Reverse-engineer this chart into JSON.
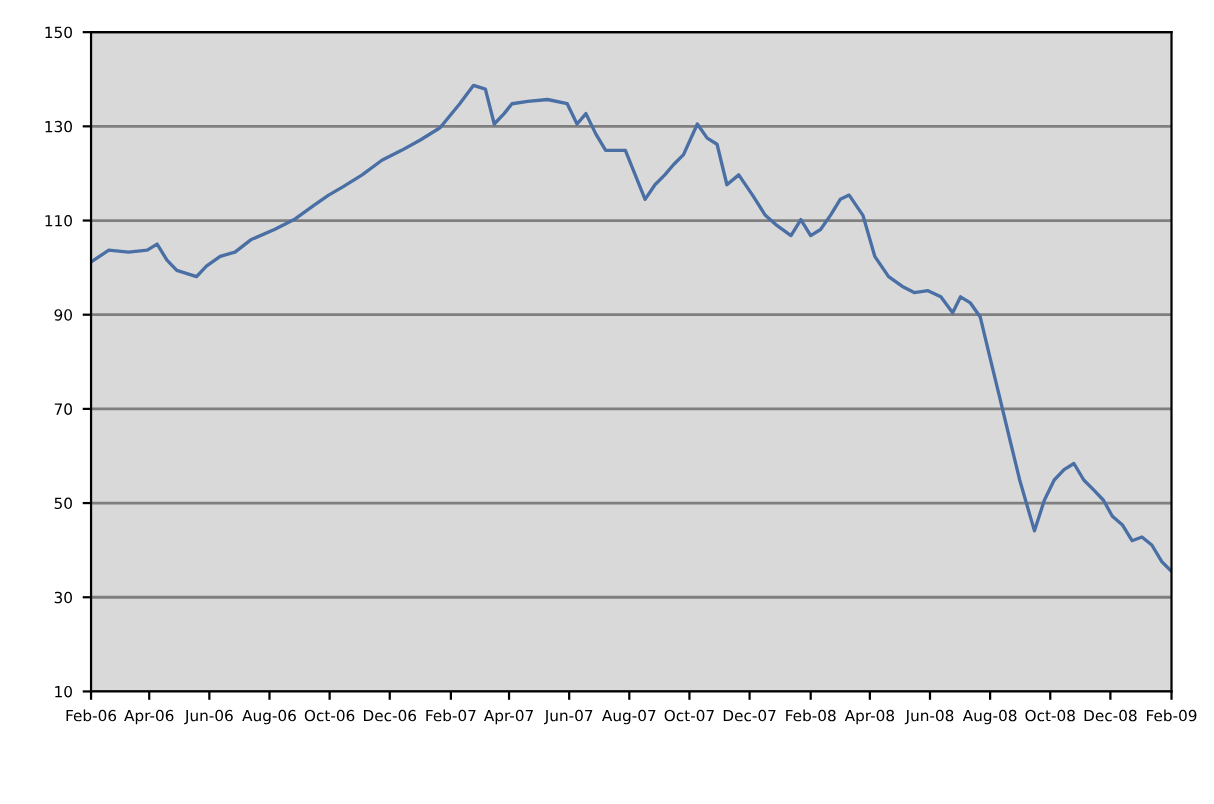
{
  "chart_data": {
    "type": "line",
    "grid": "y",
    "xlim": [
      "2006-02-01",
      "2009-02-01"
    ],
    "ylim": [
      10,
      150
    ],
    "yticks": [
      10,
      30,
      50,
      70,
      90,
      110,
      130,
      150
    ],
    "xticks": [
      {
        "value": "2006-02-01",
        "label": "Feb-06"
      },
      {
        "value": "2006-04-01",
        "label": "Apr-06"
      },
      {
        "value": "2006-06-01",
        "label": "Jun-06"
      },
      {
        "value": "2006-08-01",
        "label": "Aug-06"
      },
      {
        "value": "2006-10-01",
        "label": "Oct-06"
      },
      {
        "value": "2006-12-01",
        "label": "Dec-06"
      },
      {
        "value": "2007-02-01",
        "label": "Feb-07"
      },
      {
        "value": "2007-04-01",
        "label": "Apr-07"
      },
      {
        "value": "2007-06-01",
        "label": "Jun-07"
      },
      {
        "value": "2007-08-01",
        "label": "Aug-07"
      },
      {
        "value": "2007-10-01",
        "label": "Oct-07"
      },
      {
        "value": "2007-12-01",
        "label": "Dec-07"
      },
      {
        "value": "2008-02-01",
        "label": "Feb-08"
      },
      {
        "value": "2008-04-01",
        "label": "Apr-08"
      },
      {
        "value": "2008-06-01",
        "label": "Jun-08"
      },
      {
        "value": "2008-08-01",
        "label": "Aug-08"
      },
      {
        "value": "2008-10-01",
        "label": "Oct-08"
      },
      {
        "value": "2008-12-01",
        "label": "Dec-08"
      },
      {
        "value": "2009-02-01",
        "label": "Feb-09"
      }
    ],
    "x": [
      "2006-02-01",
      "2006-02-19",
      "2006-03-11",
      "2006-03-30",
      "2006-04-09",
      "2006-04-19",
      "2006-04-29",
      "2006-05-19",
      "2006-05-29",
      "2006-06-12",
      "2006-06-27",
      "2006-07-13",
      "2006-08-06",
      "2006-08-26",
      "2006-09-15",
      "2006-09-30",
      "2006-10-14",
      "2006-11-03",
      "2006-11-23",
      "2006-12-13",
      "2007-01-01",
      "2007-01-21",
      "2007-02-10",
      "2007-02-24",
      "2007-03-08",
      "2007-03-17",
      "2007-03-27",
      "2007-04-04",
      "2007-04-20",
      "2007-05-10",
      "2007-05-30",
      "2007-06-09",
      "2007-06-18",
      "2007-06-28",
      "2007-07-08",
      "2007-07-28",
      "2007-08-07",
      "2007-08-17",
      "2007-08-27",
      "2007-09-06",
      "2007-09-15",
      "2007-09-25",
      "2007-10-09",
      "2007-10-19",
      "2007-10-29",
      "2007-11-08",
      "2007-11-20",
      "2007-12-04",
      "2007-12-17",
      "2007-12-29",
      "2008-01-12",
      "2008-01-22",
      "2008-02-01",
      "2008-02-11",
      "2008-02-21",
      "2008-03-02",
      "2008-03-11",
      "2008-03-25",
      "2008-04-06",
      "2008-04-20",
      "2008-05-04",
      "2008-05-16",
      "2008-05-30",
      "2008-06-12",
      "2008-06-24",
      "2008-07-02",
      "2008-07-12",
      "2008-07-22",
      "2008-08-01",
      "2008-08-11",
      "2008-08-21",
      "2008-08-31",
      "2008-09-09",
      "2008-09-15",
      "2008-09-25",
      "2008-10-05",
      "2008-10-15",
      "2008-10-25",
      "2008-11-04",
      "2008-11-14",
      "2008-11-24",
      "2008-12-03",
      "2008-12-13",
      "2008-12-23",
      "2009-01-02",
      "2009-01-12",
      "2009-01-22",
      "2009-02-01"
    ],
    "series": [
      {
        "color": "#4a6fa5",
        "values": [
          101.2,
          103.7,
          103.3,
          103.7,
          105.0,
          101.6,
          99.4,
          98.1,
          100.3,
          102.4,
          103.3,
          105.9,
          108.1,
          110.2,
          113.2,
          115.4,
          117.1,
          119.7,
          122.8,
          124.9,
          127.1,
          129.7,
          134.8,
          138.7,
          137.9,
          130.5,
          132.7,
          134.8,
          135.3,
          135.7,
          134.8,
          130.5,
          132.7,
          128.4,
          124.9,
          124.9,
          119.7,
          114.5,
          117.6,
          119.7,
          121.9,
          124.0,
          130.5,
          127.5,
          126.2,
          117.6,
          119.7,
          115.4,
          111.1,
          108.9,
          106.8,
          110.2,
          106.8,
          108.1,
          111.1,
          114.5,
          115.4,
          111.1,
          102.4,
          98.1,
          96.0,
          94.7,
          95.1,
          93.8,
          90.4,
          93.8,
          92.5,
          89.5,
          80.8,
          72.2,
          63.5,
          54.9,
          48.4,
          44.1,
          50.6,
          54.9,
          57.1,
          58.4,
          54.9,
          52.8,
          50.6,
          47.2,
          45.4,
          42.0,
          42.8,
          41.1,
          37.6,
          35.5
        ]
      }
    ]
  }
}
